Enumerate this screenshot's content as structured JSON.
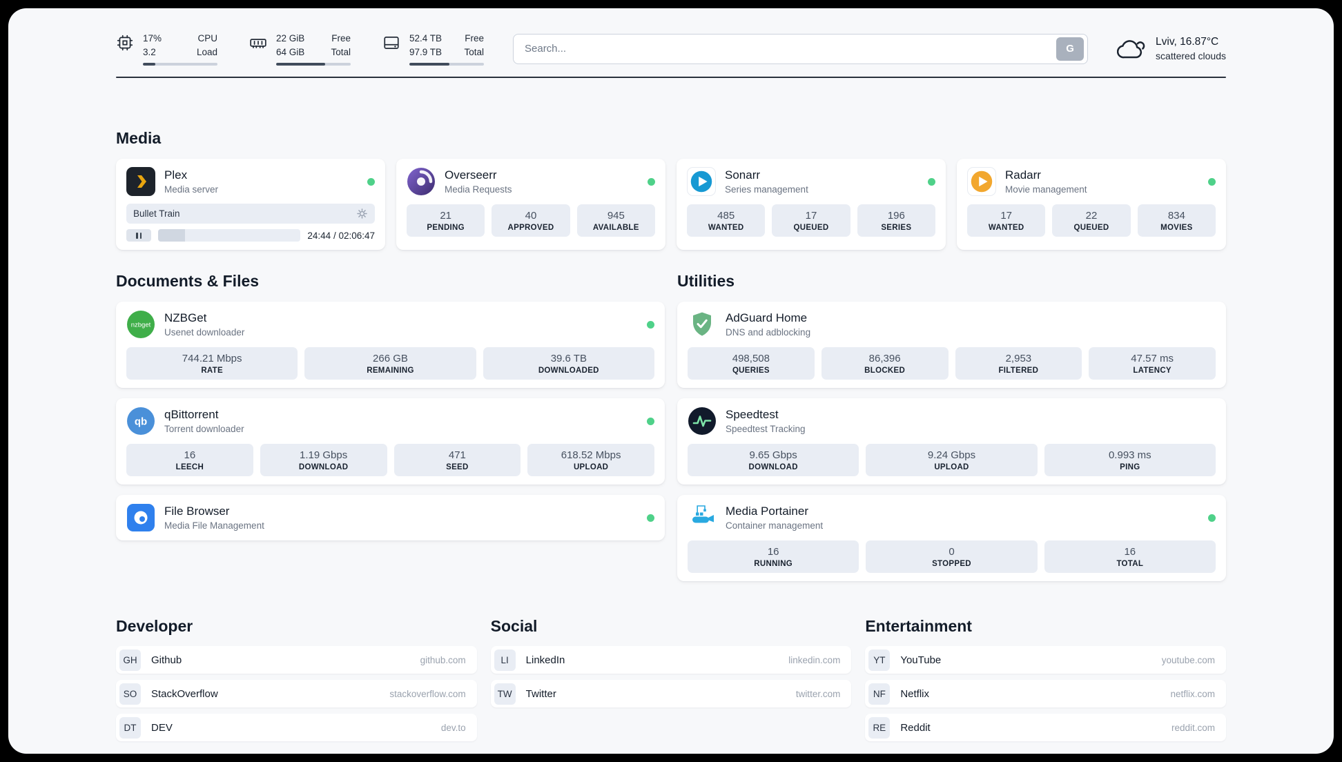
{
  "header": {
    "cpu": {
      "icon": "cpu-icon",
      "value_primary": "17%",
      "value_secondary": "3.2",
      "label_primary": "CPU",
      "label_secondary": "Load",
      "percent": 17
    },
    "ram": {
      "icon": "ram-icon",
      "value_primary": "22 GiB",
      "value_secondary": "64 GiB",
      "label_primary": "Free",
      "label_secondary": "Total",
      "percent": 66
    },
    "disk": {
      "icon": "disk-icon",
      "value_primary": "52.4 TB",
      "value_secondary": "97.9 TB",
      "label_primary": "Free",
      "label_secondary": "Total",
      "percent": 54
    },
    "search": {
      "placeholder": "Search...",
      "button_label": "G"
    },
    "weather": {
      "icon": "cloud-icon",
      "location": "Lviv, 16.87°C",
      "condition": "scattered clouds"
    }
  },
  "media": {
    "heading": "Media",
    "plex": {
      "name": "Plex",
      "subtitle": "Media server",
      "online": true,
      "now_playing": "Bullet Train",
      "time_display": "24:44 / 02:06:47",
      "progress_percent": 19
    },
    "overseerr": {
      "name": "Overseerr",
      "subtitle": "Media Requests",
      "online": true,
      "stats": [
        {
          "value": "21",
          "label": "PENDING"
        },
        {
          "value": "40",
          "label": "APPROVED"
        },
        {
          "value": "945",
          "label": "AVAILABLE"
        }
      ]
    },
    "sonarr": {
      "name": "Sonarr",
      "subtitle": "Series management",
      "online": true,
      "stats": [
        {
          "value": "485",
          "label": "WANTED"
        },
        {
          "value": "17",
          "label": "QUEUED"
        },
        {
          "value": "196",
          "label": "SERIES"
        }
      ]
    },
    "radarr": {
      "name": "Radarr",
      "subtitle": "Movie management",
      "online": true,
      "stats": [
        {
          "value": "17",
          "label": "WANTED"
        },
        {
          "value": "22",
          "label": "QUEUED"
        },
        {
          "value": "834",
          "label": "MOVIES"
        }
      ]
    }
  },
  "documents": {
    "heading": "Documents & Files",
    "nzbget": {
      "name": "NZBGet",
      "subtitle": "Usenet downloader",
      "online": true,
      "stats": [
        {
          "value": "744.21 Mbps",
          "label": "RATE"
        },
        {
          "value": "266 GB",
          "label": "REMAINING"
        },
        {
          "value": "39.6 TB",
          "label": "DOWNLOADED"
        }
      ]
    },
    "qbittorrent": {
      "name": "qBittorrent",
      "subtitle": "Torrent downloader",
      "online": true,
      "stats": [
        {
          "value": "16",
          "label": "LEECH"
        },
        {
          "value": "1.19 Gbps",
          "label": "DOWNLOAD"
        },
        {
          "value": "471",
          "label": "SEED"
        },
        {
          "value": "618.52 Mbps",
          "label": "UPLOAD"
        }
      ]
    },
    "filebrowser": {
      "name": "File Browser",
      "subtitle": "Media File Management",
      "online": true
    }
  },
  "utilities": {
    "heading": "Utilities",
    "adguard": {
      "name": "AdGuard Home",
      "subtitle": "DNS and adblocking",
      "stats": [
        {
          "value": "498,508",
          "label": "QUERIES"
        },
        {
          "value": "86,396",
          "label": "BLOCKED"
        },
        {
          "value": "2,953",
          "label": "FILTERED"
        },
        {
          "value": "47.57 ms",
          "label": "LATENCY"
        }
      ]
    },
    "speedtest": {
      "name": "Speedtest",
      "subtitle": "Speedtest Tracking",
      "stats": [
        {
          "value": "9.65 Gbps",
          "label": "DOWNLOAD"
        },
        {
          "value": "9.24 Gbps",
          "label": "UPLOAD"
        },
        {
          "value": "0.993 ms",
          "label": "PING"
        }
      ]
    },
    "portainer": {
      "name": "Media Portainer",
      "subtitle": "Container management",
      "online": true,
      "stats": [
        {
          "value": "16",
          "label": "RUNNING"
        },
        {
          "value": "0",
          "label": "STOPPED"
        },
        {
          "value": "16",
          "label": "TOTAL"
        }
      ]
    }
  },
  "bookmarks": {
    "developer": {
      "heading": "Developer",
      "items": [
        {
          "abbr": "GH",
          "name": "Github",
          "url": "github.com"
        },
        {
          "abbr": "SO",
          "name": "StackOverflow",
          "url": "stackoverflow.com"
        },
        {
          "abbr": "DT",
          "name": "DEV",
          "url": "dev.to"
        }
      ]
    },
    "social": {
      "heading": "Social",
      "items": [
        {
          "abbr": "LI",
          "name": "LinkedIn",
          "url": "linkedin.com"
        },
        {
          "abbr": "TW",
          "name": "Twitter",
          "url": "twitter.com"
        }
      ]
    },
    "entertainment": {
      "heading": "Entertainment",
      "items": [
        {
          "abbr": "YT",
          "name": "YouTube",
          "url": "youtube.com"
        },
        {
          "abbr": "NF",
          "name": "Netflix",
          "url": "netflix.com"
        },
        {
          "abbr": "RE",
          "name": "Reddit",
          "url": "reddit.com"
        }
      ]
    }
  },
  "colors": {
    "status_online": "#4fd189",
    "plex_accent": "#e8a50f",
    "overseerr_purple": "#5b44a0",
    "sonarr_blue": "#1799d3",
    "radarr_amber": "#f2a72e",
    "nzbget_green": "#3fae49",
    "qbittorrent_blue": "#4a90d9",
    "filebrowser_blue": "#2f80ed",
    "adguard_green": "#6ab483",
    "speedtest_navy": "#111a2b",
    "portainer_blue": "#29a9e0"
  }
}
